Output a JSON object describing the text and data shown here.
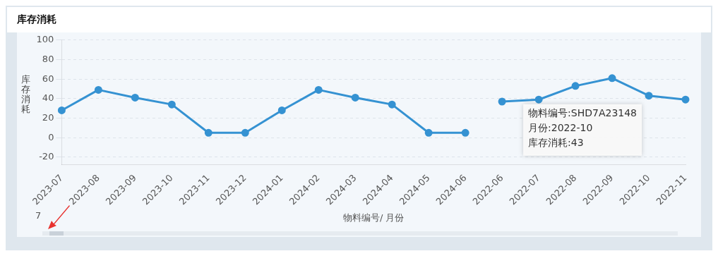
{
  "chart_data": {
    "type": "line",
    "title": "库存消耗",
    "xlabel": "物料编号/ 月份",
    "ylabel": "库存消耗",
    "categories": [
      "2023-07",
      "2023-08",
      "2023-09",
      "2023-10",
      "2023-11",
      "2023-12",
      "2024-01",
      "2024-02",
      "2024-03",
      "2024-04",
      "2024-05",
      "2024-06",
      "2022-06",
      "2022-07",
      "2022-08",
      "2022-09",
      "2022-10",
      "2022-11"
    ],
    "series": [
      {
        "color": "#3592d2",
        "values": [
          28,
          49,
          41,
          34,
          5,
          5,
          28,
          49,
          41,
          34,
          5,
          5,
          null,
          null,
          null,
          null,
          null,
          null
        ]
      },
      {
        "color": "#3592d2",
        "values": [
          null,
          null,
          null,
          null,
          null,
          null,
          null,
          null,
          null,
          null,
          null,
          null,
          37,
          39,
          53,
          61,
          43,
          39
        ]
      }
    ],
    "ylim": [
      -28,
      100
    ],
    "yticks": [
      -20,
      0,
      20,
      40,
      60,
      80,
      100
    ],
    "grid": "y",
    "marker": "circle",
    "line_style": "solid",
    "legend": false,
    "annotations": [
      {
        "text": "物料编号:SHD7A23148\n月份:2022-10\n库存消耗:43",
        "x": "2022-10",
        "y": 43
      },
      "7"
    ]
  }
}
